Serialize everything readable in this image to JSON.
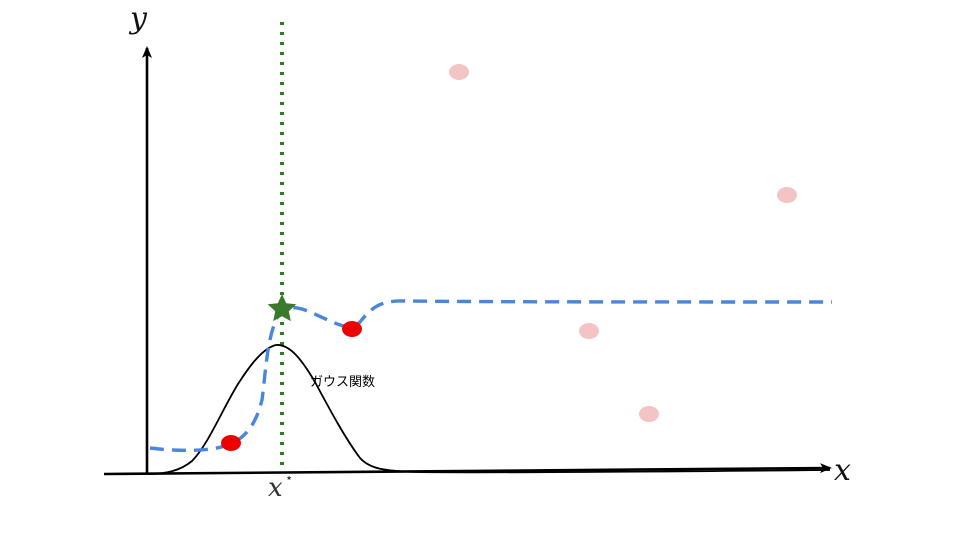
{
  "axes": {
    "x_label": "x",
    "y_label": "y",
    "axis_color": "#000000"
  },
  "marker": {
    "symbol": "x",
    "superscript": "⋆",
    "line_color": "#2e7d1f",
    "star_color": "#3a7a2a"
  },
  "gaussian": {
    "label": "ガウス関数",
    "color": "#000000"
  },
  "fit_curve": {
    "color": "#4a86dc",
    "style": "dashed"
  },
  "points": {
    "observed_color": "#ee0000",
    "candidate_color": "#f2c4c4",
    "observed_count": 2,
    "candidate_count": 4
  }
}
